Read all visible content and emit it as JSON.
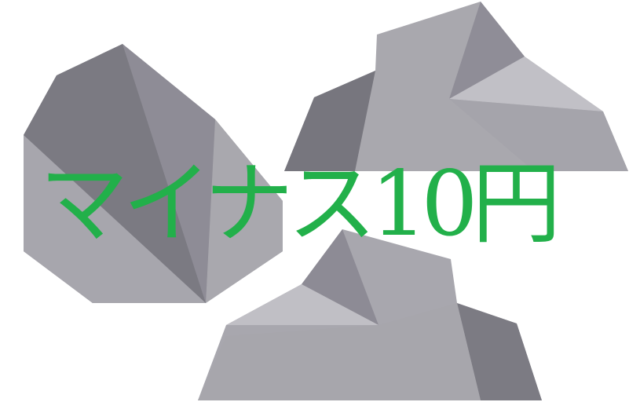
{
  "caption": {
    "text": "マイナス10円",
    "color": "#22b04a"
  },
  "rocks": [
    {
      "name": "rock-left",
      "colors": [
        "#7b7a82",
        "#8e8c96",
        "#a7a6ad",
        "#85848c"
      ]
    },
    {
      "name": "rock-right",
      "colors": [
        "#a9a8ae",
        "#77767e",
        "#8f8d97",
        "#c1c0c6",
        "#8e8d94"
      ]
    },
    {
      "name": "rock-bottom",
      "colors": [
        "#a8a7ae",
        "#8d8b95",
        "#c0bfc5",
        "#7c7b83",
        "#a7a6ac"
      ]
    }
  ]
}
